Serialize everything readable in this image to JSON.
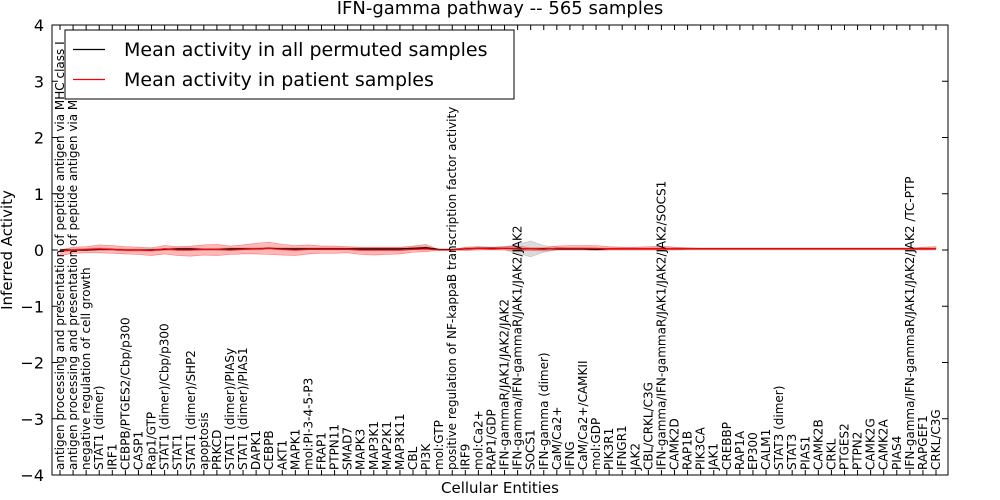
{
  "chart_data": {
    "type": "line",
    "title": "IFN-gamma pathway -- 565 samples",
    "xlabel": "Cellular Entities",
    "ylabel": "Inferred Activity",
    "ylim": [
      -4,
      4
    ],
    "yticks": [
      "−4",
      "−3",
      "−2",
      "−1",
      "0",
      "1",
      "2",
      "3",
      "4"
    ],
    "grid": false,
    "legend_position": "top-left",
    "categories": [
      "antigen processing and presentation of peptide antigen via MHC class I",
      "antigen processing and presentation of peptide antigen via MHC class II",
      "negative regulation of cell growth",
      "STAT1 (dimer)",
      "IRF1",
      "CEBPB/PTGES2/Cbp/p300",
      "CASP1",
      "Rap1/GTP",
      "STAT1 (dimer)/Cbp/p300",
      "STAT1",
      "STAT1 (dimer)/SHP2",
      "apoptosis",
      "PRKCD",
      "STAT1 (dimer)/PIASy",
      "STAT1 (dimer)/PIAS1",
      "DAPK1",
      "CEBPB",
      "AKT1",
      "MAPK1",
      "mol:PI-3-4-5-P3",
      "FRAP1",
      "PTPN11",
      "SMAD7",
      "MAPK3",
      "MAP3K1",
      "MAP2K1",
      "MAP3K11",
      "CBL",
      "PI3K",
      "mol:GTP",
      "positive regulation of NF-kappaB transcription factor activity",
      "IRF9",
      "mol:Ca2+",
      "RAP1/GDP",
      "IFN-gammaR/JAK1/JAK2/JAK2",
      "IFN-gamma/IFN-gammaR/JAK1/JAK2/JAK2",
      "SOCS1",
      "IFN-gamma (dimer)",
      "CaM/Ca2+",
      "IFNG",
      "CaM/Ca2+/CAMKII",
      "mol:GDP",
      "PIK3R1",
      "IFNGR1",
      "JAK2",
      "CBL/CRKL/C3G",
      "IFN-gamma/IFN-gammaR/JAK1/JAK2/JAK2/SOCS1",
      "CAMK2D",
      "RAP1B",
      "PIK3CA",
      "JAK1",
      "CREBBP",
      "RAP1A",
      "EP300",
      "CALM1",
      "STAT3 (dimer)",
      "STAT3",
      "PIAS1",
      "CAMK2B",
      "CRKL",
      "PTGES2",
      "PTPN2",
      "CAMK2G",
      "CAMK2A",
      "PIAS4",
      "IFN-gamma/IFN-gammaR/JAK1/JAK2/JAK2 /TC-PTP",
      "RAPGEF1",
      "CRKL/C3G"
    ],
    "series": [
      {
        "name": "Mean activity in all permuted samples",
        "color": "#000000",
        "values": [
          0.0,
          0.0,
          0.0,
          0.01,
          0.01,
          0.0,
          0.0,
          0.0,
          0.01,
          0.02,
          0.02,
          0.01,
          0.01,
          0.02,
          0.02,
          0.02,
          0.03,
          0.02,
          0.02,
          0.02,
          0.02,
          0.02,
          0.02,
          0.02,
          0.02,
          0.02,
          0.02,
          0.03,
          0.04,
          0.01,
          0.01,
          0.02,
          0.03,
          0.03,
          0.03,
          0.02,
          0.02,
          0.02,
          0.02,
          0.02,
          0.02,
          0.01,
          0.02,
          0.02,
          0.02,
          0.02,
          0.02,
          0.02,
          0.02,
          0.02,
          0.02,
          0.02,
          0.02,
          0.02,
          0.02,
          0.02,
          0.02,
          0.02,
          0.02,
          0.02,
          0.02,
          0.02,
          0.02,
          0.02,
          0.02,
          0.02,
          0.02,
          0.02
        ]
      },
      {
        "name": "Mean activity in patient samples",
        "color": "#ff0000",
        "values": [
          -0.02,
          0.0,
          0.01,
          0.02,
          0.01,
          0.0,
          0.0,
          -0.01,
          0.02,
          0.0,
          0.0,
          0.01,
          0.01,
          0.0,
          0.01,
          0.02,
          0.03,
          0.01,
          0.0,
          0.01,
          0.01,
          0.01,
          0.01,
          0.0,
          0.0,
          0.0,
          0.0,
          0.01,
          0.02,
          0.0,
          0.0,
          0.02,
          0.03,
          0.02,
          0.03,
          0.03,
          0.02,
          0.01,
          0.03,
          0.03,
          0.03,
          0.03,
          0.02,
          0.02,
          0.02,
          0.02,
          0.02,
          0.02,
          0.02,
          0.02,
          0.02,
          0.02,
          0.02,
          0.02,
          0.02,
          0.02,
          0.02,
          0.02,
          0.02,
          0.02,
          0.02,
          0.02,
          0.02,
          0.02,
          0.02,
          0.02,
          0.02,
          0.02
        ]
      }
    ],
    "band_patient": {
      "name": "patient samples spread",
      "color": "#ff0000",
      "upper": [
        0.0,
        0.05,
        0.06,
        0.09,
        0.08,
        0.06,
        0.05,
        0.04,
        0.08,
        0.06,
        0.07,
        0.09,
        0.1,
        0.07,
        0.09,
        0.12,
        0.14,
        0.1,
        0.08,
        0.09,
        0.07,
        0.07,
        0.06,
        0.05,
        0.05,
        0.05,
        0.05,
        0.07,
        0.1,
        0.0,
        0.0,
        0.05,
        0.06,
        0.05,
        0.06,
        0.07,
        0.04,
        0.04,
        0.07,
        0.08,
        0.08,
        0.08,
        0.06,
        0.05,
        0.05,
        0.06,
        0.07,
        0.05,
        0.04,
        0.03,
        0.03,
        0.03,
        0.03,
        0.03,
        0.03,
        0.03,
        0.03,
        0.03,
        0.03,
        0.03,
        0.03,
        0.03,
        0.03,
        0.03,
        0.03,
        0.03,
        0.05,
        0.06
      ],
      "lower": [
        -0.1,
        -0.06,
        -0.05,
        -0.05,
        -0.06,
        -0.07,
        -0.08,
        -0.1,
        -0.07,
        -0.1,
        -0.11,
        -0.09,
        -0.1,
        -0.08,
        -0.07,
        -0.07,
        -0.08,
        -0.09,
        -0.1,
        -0.07,
        -0.06,
        -0.06,
        -0.05,
        -0.08,
        -0.09,
        -0.08,
        -0.07,
        -0.04,
        -0.03,
        0.0,
        0.0,
        -0.01,
        0.0,
        0.0,
        0.0,
        -0.01,
        -0.01,
        -0.02,
        0.0,
        0.0,
        0.0,
        0.0,
        0.0,
        0.0,
        0.0,
        0.0,
        0.0,
        0.0,
        0.01,
        0.01,
        0.01,
        0.01,
        0.01,
        0.01,
        0.01,
        0.01,
        0.01,
        0.01,
        0.01,
        0.01,
        0.01,
        0.01,
        0.01,
        0.01,
        0.01,
        0.01,
        0.0,
        0.01
      ]
    },
    "band_permuted": {
      "name": "permuted samples spread",
      "color": "#999999",
      "upper": [
        0.02,
        0.02,
        0.03,
        0.04,
        0.03,
        0.02,
        0.02,
        0.02,
        0.03,
        0.04,
        0.04,
        0.03,
        0.03,
        0.04,
        0.04,
        0.04,
        0.05,
        0.04,
        0.04,
        0.04,
        0.04,
        0.04,
        0.04,
        0.04,
        0.04,
        0.04,
        0.04,
        0.05,
        0.06,
        0.02,
        0.02,
        0.04,
        0.05,
        0.05,
        0.06,
        0.1,
        0.16,
        0.08,
        0.05,
        0.04,
        0.04,
        0.03,
        0.04,
        0.04,
        0.04,
        0.04,
        0.04,
        0.04,
        0.04,
        0.04,
        0.04,
        0.04,
        0.04,
        0.04,
        0.04,
        0.04,
        0.04,
        0.04,
        0.04,
        0.04,
        0.04,
        0.04,
        0.04,
        0.04,
        0.04,
        0.04,
        0.04,
        0.04
      ],
      "lower": [
        -0.02,
        -0.02,
        -0.01,
        -0.01,
        -0.01,
        -0.02,
        -0.02,
        -0.02,
        -0.01,
        0.0,
        0.0,
        -0.01,
        -0.01,
        0.0,
        0.0,
        0.0,
        0.01,
        0.0,
        0.0,
        0.0,
        0.0,
        0.0,
        0.0,
        0.0,
        0.0,
        0.0,
        0.0,
        0.01,
        0.02,
        0.0,
        0.0,
        0.0,
        0.01,
        0.01,
        0.0,
        -0.06,
        -0.12,
        -0.04,
        0.0,
        0.0,
        0.0,
        -0.01,
        0.0,
        0.0,
        0.0,
        0.0,
        0.0,
        0.0,
        0.0,
        0.0,
        0.0,
        0.0,
        0.0,
        0.0,
        0.0,
        0.0,
        0.0,
        0.0,
        0.0,
        0.0,
        0.0,
        0.0,
        0.0,
        0.0,
        0.0,
        0.0,
        0.0,
        0.0
      ]
    }
  }
}
